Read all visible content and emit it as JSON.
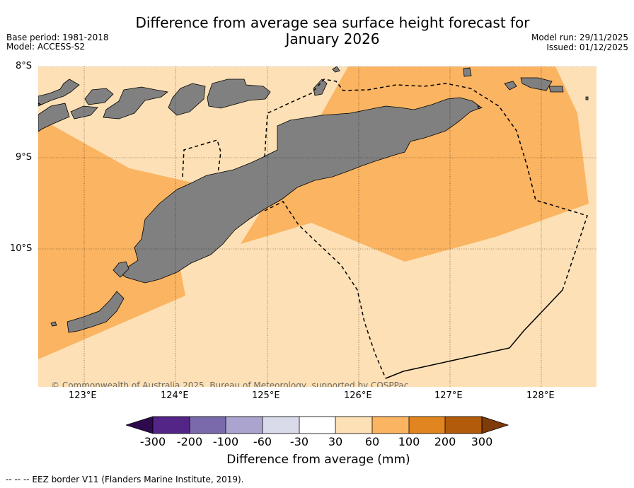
{
  "header": {
    "title_line1": "Difference from average sea surface height forecast for",
    "title_line2": "January 2026",
    "base_period": "Base period: 1981-2018",
    "model": "Model: ACCESS-S2",
    "model_run": "Model run: 29/11/2025",
    "issued": "Issued: 01/12/2025"
  },
  "map": {
    "lat_ticks": [
      "8°S",
      "9°S",
      "10°S"
    ],
    "lon_ticks": [
      "123°E",
      "124°E",
      "125°E",
      "126°E",
      "127°E",
      "128°E"
    ],
    "copyright": "© Commonwealth of Australia 2025, Bureau of Meteorology, supported by COSPPac",
    "colors": {
      "land": "#808080",
      "band_30_60": "#fde0b5",
      "band_60_100": "#fbb461"
    }
  },
  "colorbar": {
    "labels": [
      "-300",
      "-200",
      "-100",
      "-60",
      "-30",
      "30",
      "60",
      "100",
      "200",
      "300"
    ],
    "colors": [
      "#2d0a4e",
      "#522586",
      "#7a6aab",
      "#aaa4cf",
      "#d9daea",
      "#ffffff",
      "#fde0b5",
      "#fbb461",
      "#e0851f",
      "#b15b0b",
      "#7f3b08"
    ],
    "title": "Difference from average (mm)"
  },
  "footer": {
    "legend": "--  --  -- EEZ border V11 (Flanders Marine Institute, 2019)."
  }
}
